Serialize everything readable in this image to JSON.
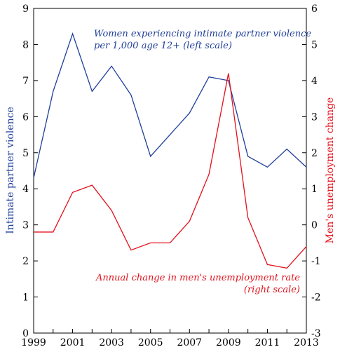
{
  "chart_data": {
    "type": "line",
    "x": [
      1999,
      2000,
      2001,
      2002,
      2003,
      2004,
      2005,
      2006,
      2007,
      2008,
      2009,
      2010,
      2011,
      2012,
      2013
    ],
    "x_tick_labels": [
      "1999",
      "2001",
      "2003",
      "2005",
      "2007",
      "2009",
      "2011",
      "2013"
    ],
    "xlim": [
      1999,
      2013
    ],
    "left_axis": {
      "label": "Intimate partner violence",
      "ylim": [
        0,
        9
      ],
      "ticks": [
        "0",
        "1",
        "2",
        "3",
        "4",
        "5",
        "6",
        "7",
        "8",
        "9"
      ],
      "color": "#1f3f9a"
    },
    "right_axis": {
      "label": "Men's unemployment change",
      "ylim": [
        -3,
        6
      ],
      "ticks": [
        "-3",
        "-2",
        "-1",
        "0",
        "1",
        "2",
        "3",
        "4",
        "5",
        "6"
      ],
      "color": "#e3101a"
    },
    "series": [
      {
        "axis": "left",
        "color": "#1f3f9a",
        "values": [
          4.3,
          6.7,
          8.3,
          6.7,
          7.4,
          6.6,
          4.9,
          5.5,
          6.1,
          7.1,
          7.0,
          4.9,
          4.6,
          5.1,
          4.6
        ]
      },
      {
        "axis": "right",
        "color": "#e3101a",
        "values": [
          -0.2,
          -0.2,
          0.9,
          1.1,
          0.4,
          -0.7,
          -0.5,
          -0.5,
          0.1,
          1.4,
          4.2,
          0.2,
          -1.1,
          -1.2,
          -0.6
        ]
      }
    ],
    "annotations": [
      {
        "color": "#1f3f9a",
        "lines": [
          "Women experiencing intimate partner violence",
          "per 1,000 age 12+ (left scale)"
        ]
      },
      {
        "color": "#e3101a",
        "lines": [
          "Annual change in men's unemployment rate",
          "(right scale)"
        ]
      }
    ],
    "grid": false
  }
}
